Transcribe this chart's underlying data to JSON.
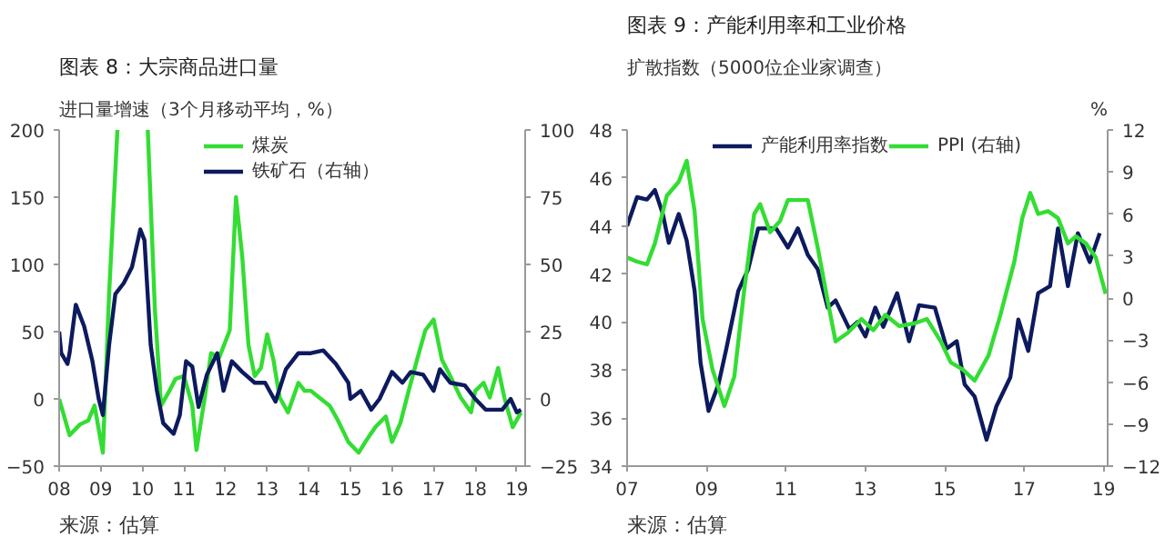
{
  "chart_data": [
    {
      "type": "line",
      "title": "图表 8：大宗商品进口量",
      "ylabel": "进口量增速（3个月移动平均，%）",
      "annotations": [
        "来源：估算"
      ],
      "xlim": [
        2008,
        2019.2
      ],
      "xticks": [
        {
          "value": 2008,
          "label": "08"
        },
        {
          "value": 2009,
          "label": "09"
        },
        {
          "value": 2010,
          "label": "10"
        },
        {
          "value": 2011,
          "label": "11"
        },
        {
          "value": 2012,
          "label": "12"
        },
        {
          "value": 2013,
          "label": "13"
        },
        {
          "value": 2014,
          "label": "14"
        },
        {
          "value": 2015,
          "label": "15"
        },
        {
          "value": 2016,
          "label": "16"
        },
        {
          "value": 2017,
          "label": "17"
        },
        {
          "value": 2018,
          "label": "18"
        },
        {
          "value": 2019,
          "label": "19"
        }
      ],
      "ylim": [
        -50,
        200
      ],
      "yticks": [
        -50,
        0,
        50,
        100,
        150,
        200
      ],
      "y2lim": [
        -25,
        100
      ],
      "y2ticks": [
        -25,
        0,
        25,
        50,
        75,
        100
      ],
      "grid": false,
      "legend": "top",
      "line_style": "solid",
      "series": [
        {
          "name": "煤炭",
          "color": "#33dd33",
          "axis": "y",
          "x": [
            2008.0,
            2008.25,
            2008.5,
            2008.7,
            2008.85,
            2009.05,
            2009.2,
            2009.4,
            2009.45,
            2010.13,
            2010.3,
            2010.45,
            2010.65,
            2010.8,
            2011.0,
            2011.2,
            2011.3,
            2011.5,
            2011.65,
            2011.85,
            2012.1,
            2012.25,
            2012.4,
            2012.55,
            2012.7,
            2012.85,
            2013.0,
            2013.15,
            2013.3,
            2013.5,
            2013.75,
            2013.9,
            2014.05,
            2014.25,
            2014.5,
            2014.7,
            2014.95,
            2015.2,
            2015.4,
            2015.6,
            2015.85,
            2016.0,
            2016.2,
            2016.4,
            2016.6,
            2016.8,
            2017.0,
            2017.2,
            2017.4,
            2017.65,
            2017.9,
            2018.0,
            2018.2,
            2018.35,
            2018.55,
            2018.7,
            2018.9,
            2019.1
          ],
          "values": [
            0,
            -27,
            -19,
            -16,
            -5,
            -40,
            78,
            200,
            null,
            200,
            67,
            -5,
            6,
            15,
            17,
            -5,
            -38,
            1,
            34,
            31,
            51,
            150,
            106,
            40,
            17,
            23,
            48,
            29,
            1,
            -10,
            12,
            6,
            6,
            1,
            -5,
            -16,
            -32,
            -40,
            -30,
            -21,
            -13,
            -32,
            -18,
            6,
            29,
            51,
            59,
            29,
            17,
            1,
            -10,
            6,
            12,
            1,
            23,
            1,
            -21,
            -10
          ]
        },
        {
          "name": "铁矿石（右轴）",
          "color": "#0d1a5e",
          "axis": "y2",
          "x": [
            2008.0,
            2008.05,
            2008.2,
            2008.25,
            2008.4,
            2008.6,
            2008.8,
            2008.95,
            2009.05,
            2009.2,
            2009.35,
            2009.55,
            2009.75,
            2009.95,
            2010.05,
            2010.2,
            2010.35,
            2010.5,
            2010.75,
            2010.9,
            2011.05,
            2011.2,
            2011.35,
            2011.55,
            2011.8,
            2011.95,
            2012.15,
            2012.4,
            2012.7,
            2012.95,
            2013.2,
            2013.45,
            2013.75,
            2014.05,
            2014.35,
            2014.65,
            2014.95,
            2015.0,
            2015.25,
            2015.5,
            2015.7,
            2016.0,
            2016.25,
            2016.45,
            2016.75,
            2017.0,
            2017.15,
            2017.4,
            2017.75,
            2018.0,
            2018.25,
            2018.65,
            2018.85,
            2019.0,
            2019.1
          ],
          "values": [
            25,
            17,
            13,
            17,
            35,
            27,
            14,
            0,
            -6,
            20,
            39,
            43,
            49,
            63,
            59,
            20,
            3,
            -9,
            -13,
            -6,
            14,
            12,
            -3,
            9,
            17,
            3,
            14,
            10,
            6,
            6,
            -1,
            11,
            17,
            17,
            18,
            13,
            6,
            0,
            3,
            -4,
            0,
            10,
            6,
            10,
            9,
            3,
            11,
            6,
            5,
            0,
            -4,
            -4,
            0,
            -5,
            -4
          ]
        }
      ]
    },
    {
      "type": "line",
      "title": "图表 9：产能利用率和工业价格",
      "ylabel": "扩散指数（5000位企业家调查）",
      "y2label": "%",
      "annotations": [
        "来源：估算"
      ],
      "xlim": [
        2007,
        2019.1
      ],
      "xticks": [
        {
          "value": 2007,
          "label": "07"
        },
        {
          "value": 2009,
          "label": "09"
        },
        {
          "value": 2011,
          "label": "11"
        },
        {
          "value": 2013,
          "label": "13"
        },
        {
          "value": 2015,
          "label": "15"
        },
        {
          "value": 2017,
          "label": "17"
        },
        {
          "value": 2019,
          "label": "19"
        }
      ],
      "ylim": [
        34,
        48
      ],
      "yticks": [
        34,
        36,
        38,
        40,
        42,
        44,
        46,
        48
      ],
      "y2lim": [
        -12,
        12
      ],
      "y2ticks": [
        -12,
        -9,
        -6,
        -3,
        0,
        3,
        6,
        9,
        12
      ],
      "grid": false,
      "legend": "top",
      "line_style": "solid",
      "series": [
        {
          "name": "产能利用率指数",
          "color": "#0d1a5e",
          "axis": "y",
          "x": [
            2007,
            2007.25,
            2007.5,
            2007.7,
            2007.9,
            2008.05,
            2008.3,
            2008.5,
            2008.7,
            2008.85,
            2009.05,
            2009.3,
            2009.5,
            2009.8,
            2010.05,
            2010.3,
            2010.5,
            2010.75,
            2011.05,
            2011.3,
            2011.55,
            2011.8,
            2012.05,
            2012.25,
            2012.6,
            2012.8,
            2013.0,
            2013.25,
            2013.45,
            2013.8,
            2014.1,
            2014.35,
            2014.75,
            2015.05,
            2015.3,
            2015.5,
            2015.75,
            2016.05,
            2016.3,
            2016.65,
            2016.85,
            2017.1,
            2017.35,
            2017.65,
            2017.85,
            2018.1,
            2018.35,
            2018.65,
            2018.9
          ],
          "values": [
            44.0,
            45.2,
            45.1,
            45.5,
            44.5,
            43.3,
            44.5,
            43.4,
            41.3,
            38.3,
            36.3,
            37.4,
            38.9,
            41.3,
            42.2,
            43.9,
            43.9,
            43.9,
            43.1,
            43.9,
            42.8,
            42.2,
            40.6,
            40.9,
            39.7,
            40.0,
            39.4,
            40.6,
            39.8,
            41.2,
            39.2,
            40.7,
            40.6,
            38.9,
            39.2,
            37.4,
            36.9,
            35.1,
            36.5,
            37.7,
            40.1,
            38.8,
            41.2,
            41.5,
            43.9,
            41.5,
            43.7,
            42.5,
            43.7
          ]
        },
        {
          "name": "PPI (右轴)",
          "color": "#33dd33",
          "axis": "y2",
          "x": [
            2007,
            2007.25,
            2007.5,
            2007.7,
            2008.0,
            2008.3,
            2008.5,
            2008.7,
            2008.9,
            2009.15,
            2009.45,
            2009.7,
            2009.95,
            2010.2,
            2010.35,
            2010.6,
            2010.85,
            2011.05,
            2011.3,
            2011.55,
            2011.8,
            2012.05,
            2012.25,
            2012.55,
            2012.9,
            2013.2,
            2013.5,
            2013.85,
            2014.25,
            2014.55,
            2014.9,
            2015.15,
            2015.45,
            2015.75,
            2016.1,
            2016.4,
            2016.75,
            2016.95,
            2017.15,
            2017.35,
            2017.6,
            2017.85,
            2018.1,
            2018.3,
            2018.55,
            2018.8,
            2019.05
          ],
          "values": [
            2.9,
            2.6,
            2.4,
            3.9,
            7.3,
            8.3,
            9.8,
            6.2,
            -1.5,
            -5.1,
            -7.7,
            -5.6,
            0.6,
            6.0,
            6.7,
            4.7,
            5.5,
            7.0,
            7.0,
            7.0,
            3.6,
            -0.2,
            -3.1,
            -2.5,
            -1.5,
            -2.3,
            -1.2,
            -2.0,
            -1.8,
            -1.5,
            -3.1,
            -4.6,
            -5.1,
            -5.9,
            -4.1,
            -1.2,
            2.6,
            5.7,
            7.5,
            6.0,
            6.2,
            5.7,
            3.9,
            4.4,
            3.9,
            2.9,
            0.3
          ]
        }
      ]
    }
  ]
}
